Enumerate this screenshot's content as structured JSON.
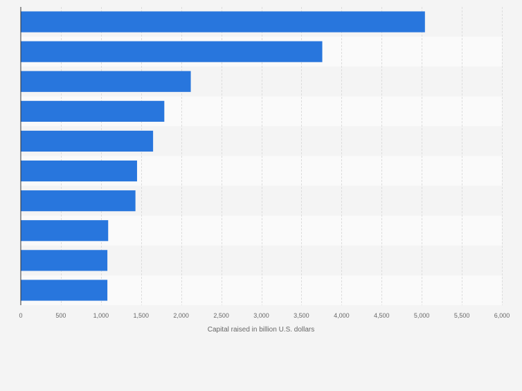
{
  "chart_data": {
    "type": "bar",
    "orientation": "horizontal",
    "categories": [
      "",
      "",
      "",
      "",
      "",
      "",
      "",
      "",
      "",
      ""
    ],
    "values": [
      5040,
      3760,
      2120,
      1790,
      1650,
      1450,
      1430,
      1090,
      1080,
      1080
    ],
    "title": "",
    "xlabel": "Capital raised in billion U.S. dollars",
    "ylabel": "",
    "xlim": [
      0,
      6000
    ],
    "xticks": [
      0,
      500,
      1000,
      1500,
      2000,
      2500,
      3000,
      3500,
      4000,
      4500,
      5000,
      5500,
      6000
    ],
    "xtick_labels": [
      "0",
      "500",
      "1,000",
      "1,500",
      "2,000",
      "2,500",
      "3,000",
      "3,500",
      "4,000",
      "4,500",
      "5,000",
      "5,500",
      "6,000"
    ],
    "grid": true,
    "legend": "none",
    "bar_color": "#2876dd"
  }
}
